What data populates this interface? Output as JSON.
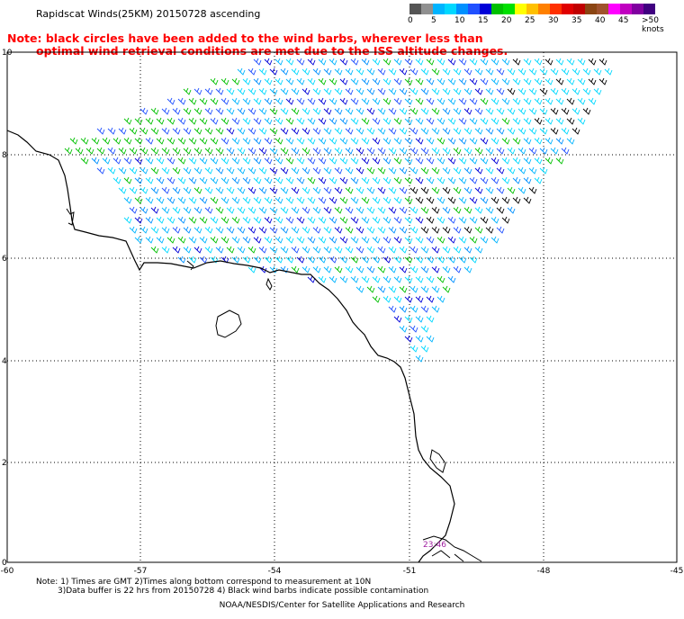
{
  "title": "Rapidscat Winds(25KM)  20150728  ascending",
  "note": {
    "line1": "Note: black circles have been added to the wind barbs, wherever less than",
    "line2": "optimal wind retrieval conditions are met due to the ISS altitude changes."
  },
  "legend": {
    "labels": [
      "0",
      "5",
      "10",
      "15",
      "20",
      "25",
      "30",
      "35",
      "40",
      "45",
      ">50 knots"
    ],
    "colors": [
      "#555555",
      "#909090",
      "#00b4ff",
      "#00d8ff",
      "#0090ff",
      "#2050ff",
      "#0000d8",
      "#00c000",
      "#00e000",
      "#ffff00",
      "#ffc000",
      "#ff8000",
      "#ff3000",
      "#e00000",
      "#c00000",
      "#8b4513",
      "#a0522d",
      "#ff00ff",
      "#c000c0",
      "#8000a0",
      "#400080"
    ]
  },
  "axes": {
    "x_ticks": [
      "-60",
      "-57",
      "-54",
      "-51",
      "-48",
      "-45"
    ],
    "y_ticks": [
      "10",
      "8",
      "6",
      "4",
      "2",
      "0"
    ]
  },
  "time_label": "23:46",
  "footer": {
    "line1": "Note: 1) Times are GMT  2)Times along bottom correspond to measurement at 10N",
    "line2": "3)Data buffer is 22 hrs from 20150728  4) Black wind barbs indicate possible contamination",
    "line3": "NOAA/NESDIS/Center for Satellite Applications and Research"
  }
}
